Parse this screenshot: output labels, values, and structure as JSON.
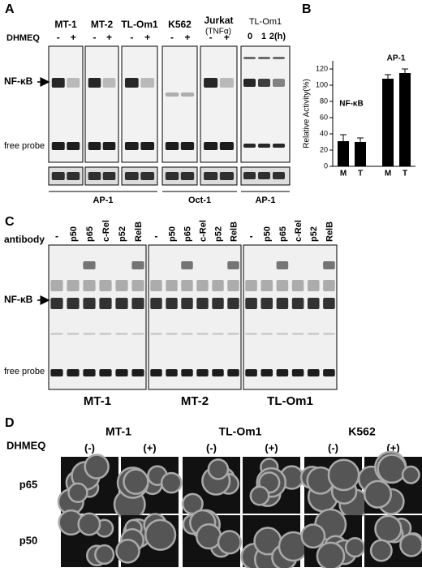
{
  "panel_a": {
    "label": "A",
    "treatment": "DHMEQ",
    "signs": [
      "-",
      "+"
    ],
    "gels": [
      "MT-1",
      "MT-2",
      "TL-Om1",
      "K562",
      "Jurkat"
    ],
    "jurkat_note": "(TNFα)",
    "time_gel": {
      "name": "TL-Om1",
      "times": [
        "0",
        "1",
        "2(h)"
      ]
    },
    "band": "NF-κB",
    "free_probe": "free probe",
    "controls": [
      "AP-1",
      "Oct-1",
      "AP-1"
    ]
  },
  "panel_b": {
    "label": "B",
    "chart_data": {
      "type": "bar",
      "ylabel": "Relative Activity(%)",
      "categories": [
        "M",
        "T",
        "M",
        "T"
      ],
      "values": [
        31,
        30,
        108,
        115
      ],
      "errors": [
        8,
        5,
        5,
        5
      ],
      "annotations": [
        "NF-κB",
        "AP-1"
      ],
      "color": "#000000",
      "ylim": [
        0,
        130
      ],
      "yticks": [
        0,
        20,
        40,
        60,
        80,
        100,
        120
      ]
    }
  },
  "panel_c": {
    "label": "C",
    "antibody": "antibody",
    "lanes": [
      "-",
      "p50",
      "p65",
      "c-Rel",
      "p52",
      "RelB"
    ],
    "cells": [
      "MT-1",
      "MT-2",
      "TL-Om1"
    ],
    "band": "NF-κB",
    "free_probe": "free probe"
  },
  "panel_d": {
    "label": "D",
    "treatment": "DHMEQ",
    "cells": [
      "MT-1",
      "TL-Om1",
      "K562"
    ],
    "conditions": [
      "(-)",
      "(+)"
    ],
    "stains": [
      "p65",
      "p50"
    ]
  }
}
